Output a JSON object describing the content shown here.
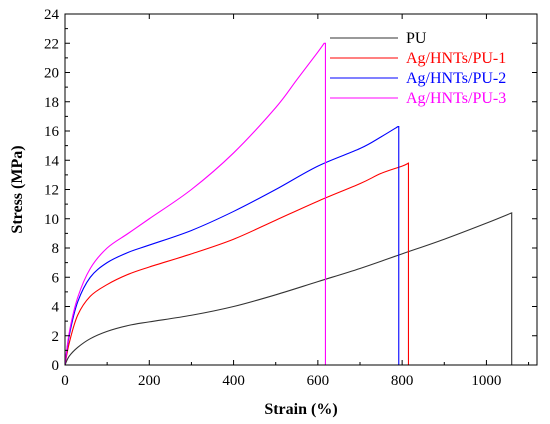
{
  "chart_data": {
    "type": "line",
    "title": "",
    "xlabel": "Strain (%)",
    "ylabel": "Stress (MPa)",
    "xlim": [
      0,
      1120
    ],
    "ylim": [
      0,
      24
    ],
    "xticks": [
      0,
      200,
      400,
      600,
      800,
      1000
    ],
    "yticks": [
      0,
      2,
      4,
      6,
      8,
      10,
      12,
      14,
      16,
      18,
      20,
      22,
      24
    ],
    "grid": false,
    "legend_position": "top-right",
    "series": [
      {
        "name": "PU",
        "color": "#333333",
        "x": [
          0,
          10,
          30,
          60,
          100,
          150,
          200,
          300,
          400,
          500,
          600,
          700,
          800,
          900,
          1000,
          1060
        ],
        "y": [
          0,
          0.6,
          1.2,
          1.8,
          2.3,
          2.7,
          2.95,
          3.4,
          4.0,
          4.8,
          5.7,
          6.6,
          7.6,
          8.6,
          9.7,
          10.4
        ],
        "break_x": 1060
      },
      {
        "name": "Ag/HNTs/PU-1",
        "color": "#ff0000",
        "x": [
          0,
          10,
          30,
          60,
          100,
          150,
          200,
          300,
          400,
          500,
          600,
          700,
          750,
          800,
          815
        ],
        "y": [
          0,
          1.5,
          3.4,
          4.7,
          5.5,
          6.2,
          6.7,
          7.6,
          8.6,
          9.9,
          11.2,
          12.4,
          13.1,
          13.6,
          13.8
        ],
        "break_x": 815
      },
      {
        "name": "Ag/HNTs/PU-2",
        "color": "#0000ff",
        "x": [
          0,
          10,
          30,
          60,
          100,
          150,
          200,
          300,
          400,
          500,
          600,
          700,
          750,
          790
        ],
        "y": [
          0,
          2.0,
          4.3,
          6.0,
          7.0,
          7.7,
          8.2,
          9.2,
          10.5,
          12.0,
          13.6,
          14.8,
          15.6,
          16.3
        ],
        "break_x": 792
      },
      {
        "name": "Ag/HNTs/PU-3",
        "color": "#ff00ff",
        "x": [
          0,
          10,
          30,
          60,
          100,
          150,
          200,
          300,
          400,
          500,
          550,
          600,
          615
        ],
        "y": [
          0,
          2.2,
          4.6,
          6.6,
          8.0,
          9.0,
          10.0,
          12.0,
          14.5,
          17.6,
          19.5,
          21.4,
          22.0
        ],
        "break_x": 618
      }
    ]
  }
}
